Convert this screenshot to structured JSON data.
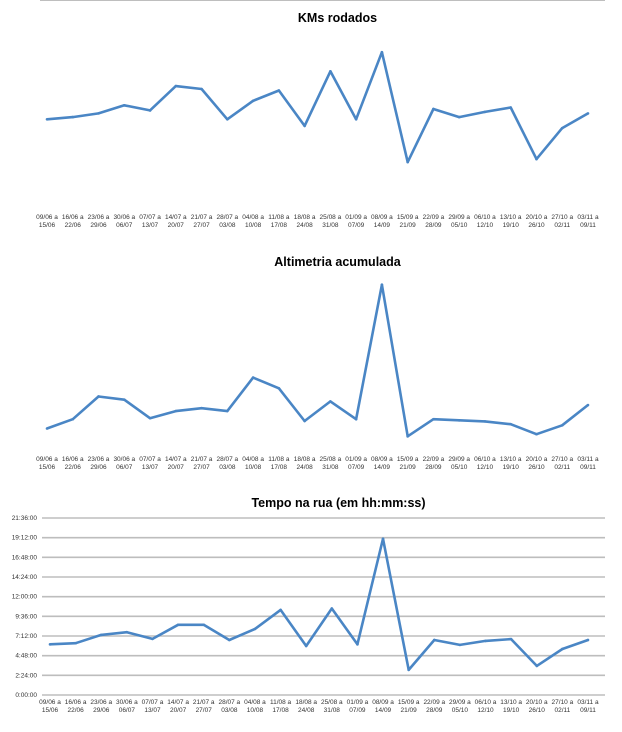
{
  "chart_data": [
    {
      "type": "line",
      "title": "KMs rodados",
      "categories": [
        [
          "09/06 a",
          "15/06"
        ],
        [
          "16/06 a",
          "22/06"
        ],
        [
          "23/06 a",
          "29/06"
        ],
        [
          "30/06 a",
          "06/07"
        ],
        [
          "07/07 a",
          "13/07"
        ],
        [
          "14/07 a",
          "20/07"
        ],
        [
          "21/07 a",
          "27/07"
        ],
        [
          "28/07 a",
          "03/08"
        ],
        [
          "04/08 a",
          "10/08"
        ],
        [
          "11/08 a",
          "17/08"
        ],
        [
          "18/08 a",
          "24/08"
        ],
        [
          "25/08 a",
          "31/08"
        ],
        [
          "01/09 a",
          "07/09"
        ],
        [
          "08/09 a",
          "14/09"
        ],
        [
          "15/09 a",
          "21/09"
        ],
        [
          "22/09 a",
          "28/09"
        ],
        [
          "29/09 a",
          "05/10"
        ],
        [
          "06/10 a",
          "12/10"
        ],
        [
          "13/10 a",
          "19/10"
        ],
        [
          "20/10 a",
          "26/10"
        ],
        [
          "27/10 a",
          "02/11"
        ],
        [
          "03/11 a",
          "09/11"
        ]
      ],
      "values": [
        61.5,
        63,
        65.5,
        71,
        67.5,
        84,
        82,
        61.5,
        74,
        81,
        57,
        94,
        61.5,
        107,
        32.5,
        68.5,
        63,
        66.5,
        69.5,
        34.5,
        55.5,
        65.5
      ],
      "yticks": [
        "0.00",
        "20.00",
        "40.00",
        "60.00",
        "80.00",
        "100.00",
        "120.00"
      ],
      "ylim": [
        0,
        120
      ],
      "grid": true,
      "color": "#4a86c5"
    },
    {
      "type": "line",
      "title": "Altimetria acumulada",
      "categories": [
        [
          "09/06 a",
          "15/06"
        ],
        [
          "16/06 a",
          "22/06"
        ],
        [
          "23/06 a",
          "29/06"
        ],
        [
          "30/06 a",
          "06/07"
        ],
        [
          "07/07 a",
          "13/07"
        ],
        [
          "14/07 a",
          "20/07"
        ],
        [
          "21/07 a",
          "27/07"
        ],
        [
          "28/07 a",
          "03/08"
        ],
        [
          "04/08 a",
          "10/08"
        ],
        [
          "11/08 a",
          "17/08"
        ],
        [
          "18/08 a",
          "24/08"
        ],
        [
          "25/08 a",
          "31/08"
        ],
        [
          "01/09 a",
          "07/09"
        ],
        [
          "08/09 a",
          "14/09"
        ],
        [
          "15/09 a",
          "21/09"
        ],
        [
          "22/09 a",
          "28/09"
        ],
        [
          "29/09 a",
          "05/10"
        ],
        [
          "06/10 a",
          "12/10"
        ],
        [
          "13/10 a",
          "19/10"
        ],
        [
          "20/10 a",
          "26/10"
        ],
        [
          "27/10 a",
          "02/11"
        ],
        [
          "03/11 a",
          "09/11"
        ]
      ],
      "values": [
        660,
        920,
        1560,
        1470,
        950,
        1150,
        1230,
        1150,
        2090,
        1790,
        870,
        1420,
        920,
        4700,
        440,
        920,
        890,
        860,
        780,
        500,
        750,
        1320
      ],
      "yticks": [
        "0",
        "500",
        "1000",
        "1500",
        "2000",
        "2500",
        "3000",
        "3500",
        "4000",
        "4500",
        "5000"
      ],
      "ylim": [
        0,
        5000
      ],
      "grid": true,
      "color": "#4a86c5"
    },
    {
      "type": "line",
      "title": "Tempo na rua (em hh:mm:ss)",
      "categories": [
        [
          "09/06 a",
          "15/06"
        ],
        [
          "16/06 a",
          "22/06"
        ],
        [
          "23/06 a",
          "29/06"
        ],
        [
          "30/06 a",
          "06/07"
        ],
        [
          "07/07 a",
          "13/07"
        ],
        [
          "14/07 a",
          "20/07"
        ],
        [
          "21/07 a",
          "27/07"
        ],
        [
          "28/07 a",
          "03/08"
        ],
        [
          "04/08 a",
          "10/08"
        ],
        [
          "11/08 a",
          "17/08"
        ],
        [
          "18/08 a",
          "24/08"
        ],
        [
          "25/08 a",
          "31/08"
        ],
        [
          "01/09 a",
          "07/09"
        ],
        [
          "08/09 a",
          "14/09"
        ],
        [
          "15/09 a",
          "21/09"
        ],
        [
          "22/09 a",
          "28/09"
        ],
        [
          "29/09 a",
          "05/10"
        ],
        [
          "06/10 a",
          "12/10"
        ],
        [
          "13/10 a",
          "19/10"
        ],
        [
          "20/10 a",
          "26/10"
        ],
        [
          "27/10 a",
          "02/11"
        ],
        [
          "03/11 a",
          "09/11"
        ]
      ],
      "values": [
        "6:11:00",
        "6:19:00",
        "7:20:00",
        "7:40:00",
        "6:51:00",
        "8:34:00",
        "8:34:00",
        "6:43:00",
        "8:04:00",
        "10:23:00",
        "5:59:00",
        "10:33:00",
        "6:11:00",
        "19:04:00",
        "3:04:00",
        "6:43:00",
        "6:07:00",
        "6:36:00",
        "6:49:00",
        "3:33:00",
        "5:37:00",
        "6:43:00"
      ],
      "yticks": [
        "0:00:00",
        "2:24:00",
        "4:48:00",
        "7:12:00",
        "9:36:00",
        "12:00:00",
        "14:24:00",
        "16:48:00",
        "19:12:00",
        "21:36:00"
      ],
      "ylim": [
        "0:00:00",
        "21:36:00"
      ],
      "grid": true,
      "color": "#4a86c5"
    }
  ]
}
